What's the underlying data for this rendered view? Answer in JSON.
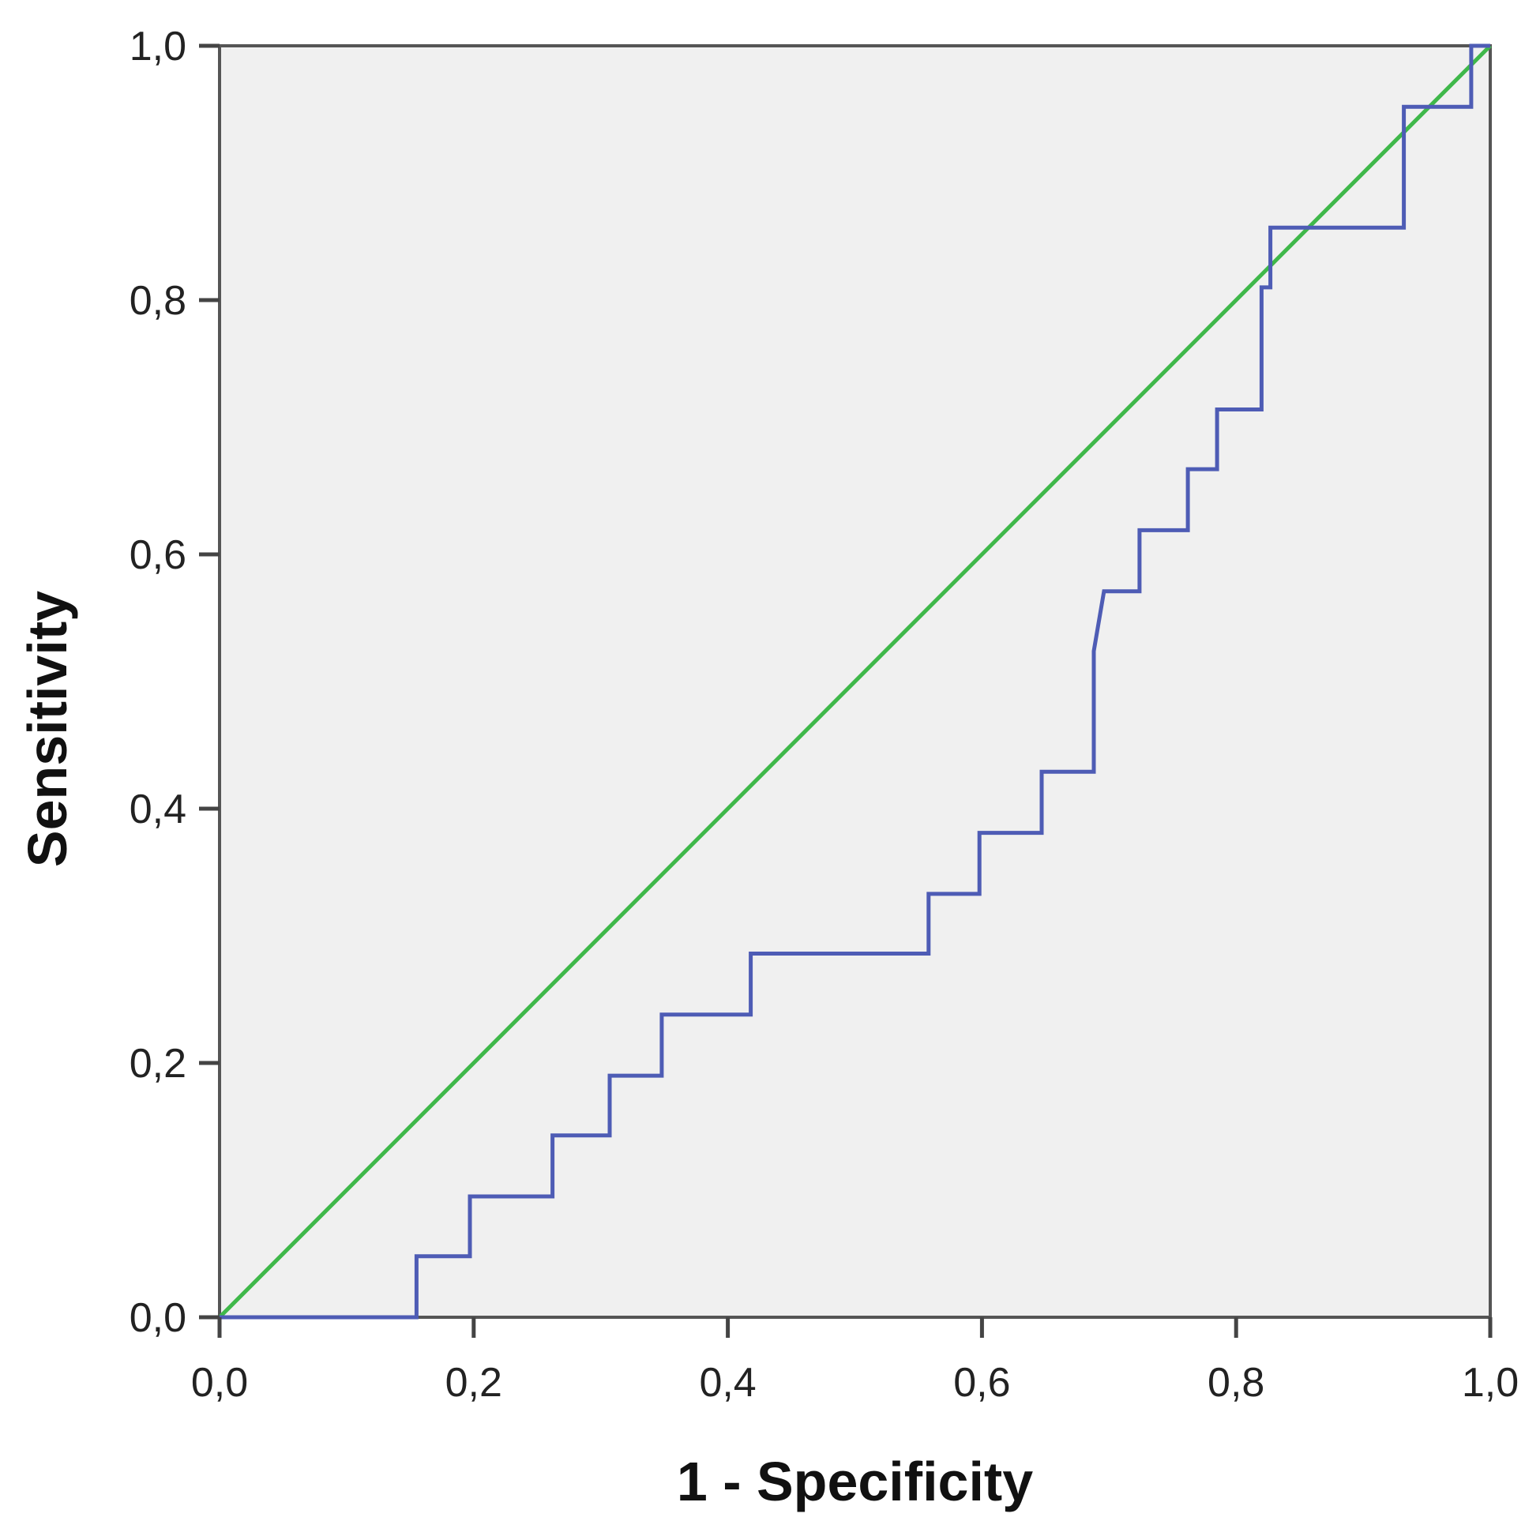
{
  "chart_data": {
    "type": "line",
    "xlabel": "1 - Specificity",
    "ylabel": "Sensitivity",
    "xlim": [
      0,
      1
    ],
    "ylim": [
      0,
      1
    ],
    "x_ticks": [
      "0,0",
      "0,2",
      "0,4",
      "0,6",
      "0,8",
      "1,0"
    ],
    "y_ticks": [
      "0,0",
      "0,2",
      "0,4",
      "0,6",
      "0,8",
      "1,0"
    ],
    "grid": false,
    "background_color": "#f0f0f0",
    "series": [
      {
        "color": "#4e5cb5",
        "step": true,
        "x": [
          0,
          0.155,
          0.155,
          0.197,
          0.197,
          0.262,
          0.262,
          0.307,
          0.307,
          0.348,
          0.348,
          0.418,
          0.418,
          0.558,
          0.558,
          0.598,
          0.598,
          0.647,
          0.647,
          0.688,
          0.688,
          0.696,
          0.696,
          0.724,
          0.724,
          0.762,
          0.762,
          0.785,
          0.785,
          0.82,
          0.82,
          0.827,
          0.827,
          0.932,
          0.932,
          0.985,
          0.985,
          1.0
        ],
        "y": [
          0,
          0,
          0.048,
          0.048,
          0.095,
          0.095,
          0.143,
          0.143,
          0.19,
          0.19,
          0.238,
          0.238,
          0.286,
          0.286,
          0.333,
          0.333,
          0.381,
          0.381,
          0.429,
          0.429,
          0.524,
          0.571,
          0.571,
          0.571,
          0.619,
          0.619,
          0.667,
          0.667,
          0.714,
          0.714,
          0.81,
          0.81,
          0.857,
          0.857,
          0.952,
          0.952,
          1.0,
          1.0
        ]
      },
      {
        "color": "#3fb84a",
        "x": [
          0,
          1
        ],
        "y": [
          0,
          1
        ]
      }
    ]
  }
}
